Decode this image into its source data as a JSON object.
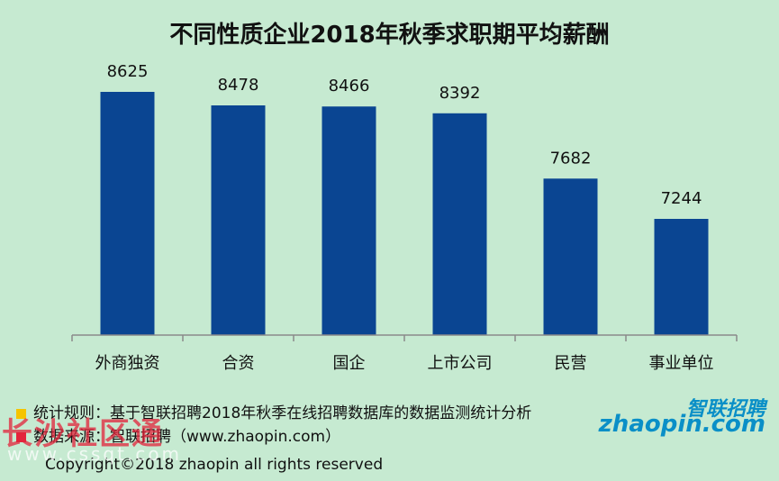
{
  "chart_data": {
    "type": "bar",
    "title": "不同性质企业2018年秋季求职期平均薪酬",
    "categories": [
      "外商独资",
      "合资",
      "国企",
      "上市公司",
      "民营",
      "事业单位"
    ],
    "values": [
      8625,
      8478,
      8466,
      8392,
      7682,
      7244
    ],
    "bar_color": "#0a4592",
    "xlabel": "",
    "ylabel": "",
    "grid": false,
    "legend": "none"
  },
  "notes": {
    "rule": "统计规则：基于智联招聘2018年秋季在线招聘数据库的数据监测统计分析",
    "source": "数据来源：智联招聘（www.zhaopin.com）",
    "rule_bullet_color": "#f5c400",
    "source_bullet_color": "#e3243b"
  },
  "copyright": "Copyright©2018 zhaopin all rights reserved",
  "logo": {
    "cn": "智联招聘",
    "en": "zhaopin.com"
  },
  "watermark": {
    "text": "长沙社区通",
    "url": "www.cssqt.com"
  }
}
